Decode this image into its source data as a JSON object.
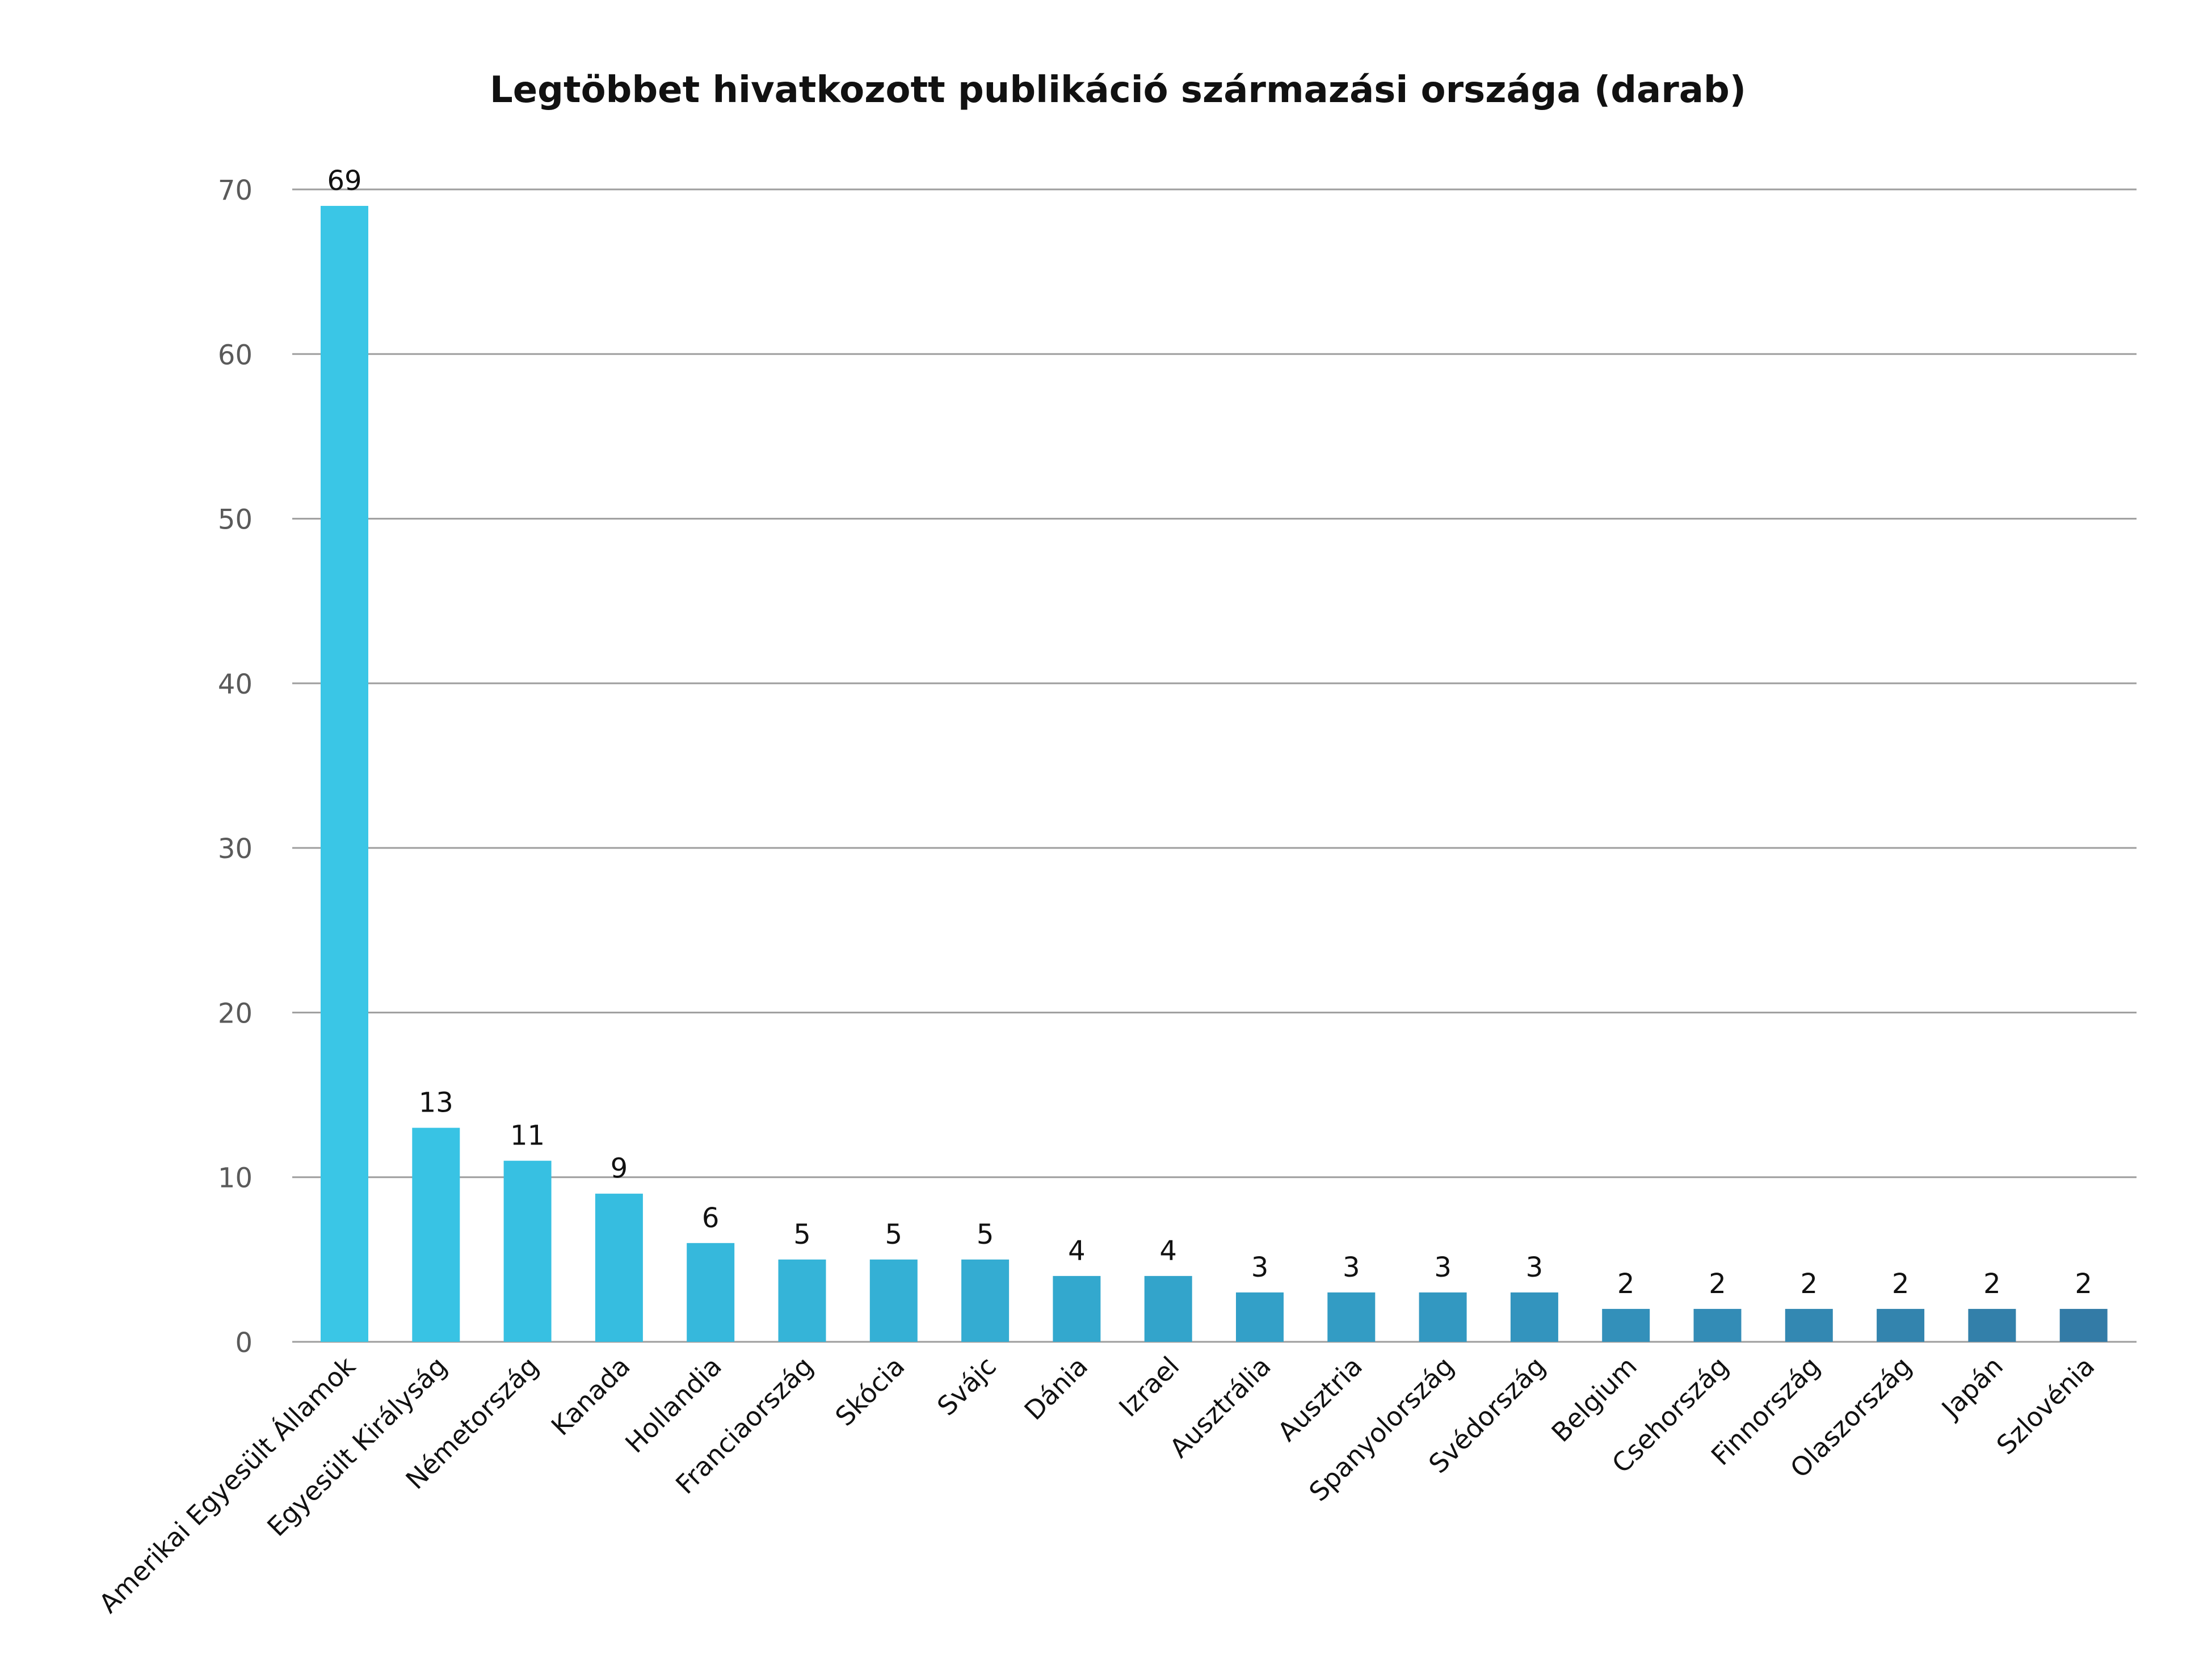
{
  "chart_data": {
    "type": "bar",
    "title": "Legtöbbet hivatkozott publikáció származási országa (darab)",
    "xlabel": "",
    "ylabel": "",
    "ylim": [
      0,
      70
    ],
    "yticks": [
      0,
      10,
      20,
      30,
      40,
      50,
      60,
      70
    ],
    "grid": true,
    "legend": "none",
    "categories": [
      "Amerikai Egyesült Államok",
      "Egyesült Királyság",
      "Németország",
      "Kanada",
      "Hollandia",
      "Franciaország",
      "Skócia",
      "Svájc",
      "Dánia",
      "Izrael",
      "Ausztrália",
      "Ausztria",
      "Spanyolország",
      "Svédország",
      "Belgium",
      "Csehország",
      "Finnország",
      "Olaszország",
      "Japán",
      "Szlovénia"
    ],
    "values": [
      69,
      13,
      11,
      9,
      6,
      5,
      5,
      5,
      4,
      4,
      3,
      3,
      3,
      3,
      2,
      2,
      2,
      2,
      2,
      2
    ],
    "bar_colors": [
      "#3AC6E6",
      "#38C3E4",
      "#37C0E2",
      "#36BDE0",
      "#36B8DC",
      "#35B4D8",
      "#34B0D5",
      "#34ACD2",
      "#33A8CE",
      "#33A4CB",
      "#33A0C8",
      "#339CC4",
      "#3398C1",
      "#3394BE",
      "#3390BA",
      "#338CB6",
      "#3388B2",
      "#3384AE",
      "#3380AA",
      "#337BA6"
    ],
    "colors": {
      "gridline": "#9E9E9E",
      "tick_label": "#5A5A5A",
      "value_label": "#111111",
      "title": "#111111"
    }
  }
}
